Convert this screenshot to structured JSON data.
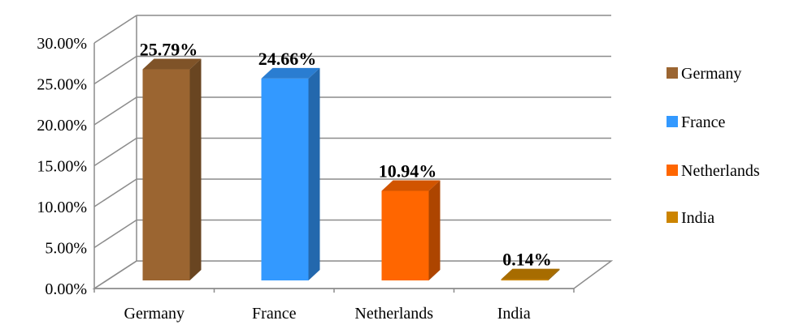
{
  "chart_data": {
    "type": "bar",
    "categories": [
      "Germany",
      "France",
      "Netherlands",
      "India"
    ],
    "values": [
      25.79,
      24.66,
      10.94,
      0.14
    ],
    "data_labels": [
      "25.79%",
      "24.66%",
      "10.94%",
      "0.14%"
    ],
    "colors": [
      "#9b6531",
      "#3399ff",
      "#ff6600",
      "#cc8400"
    ],
    "y_ticks": [
      {
        "value": 0,
        "label": "0.00%"
      },
      {
        "value": 5,
        "label": "5.00%"
      },
      {
        "value": 10,
        "label": "10.00%"
      },
      {
        "value": 15,
        "label": "15.00%"
      },
      {
        "value": 20,
        "label": "20.00%"
      },
      {
        "value": 25,
        "label": "25.00%"
      },
      {
        "value": 30,
        "label": "30.00%"
      }
    ],
    "ylim": [
      0,
      30
    ],
    "title": "",
    "xlabel": "",
    "ylabel": "",
    "grid": true,
    "three_d": true,
    "legend": {
      "placement": "right",
      "entries": [
        "Germany",
        "France",
        "Netherlands",
        "India"
      ]
    }
  }
}
